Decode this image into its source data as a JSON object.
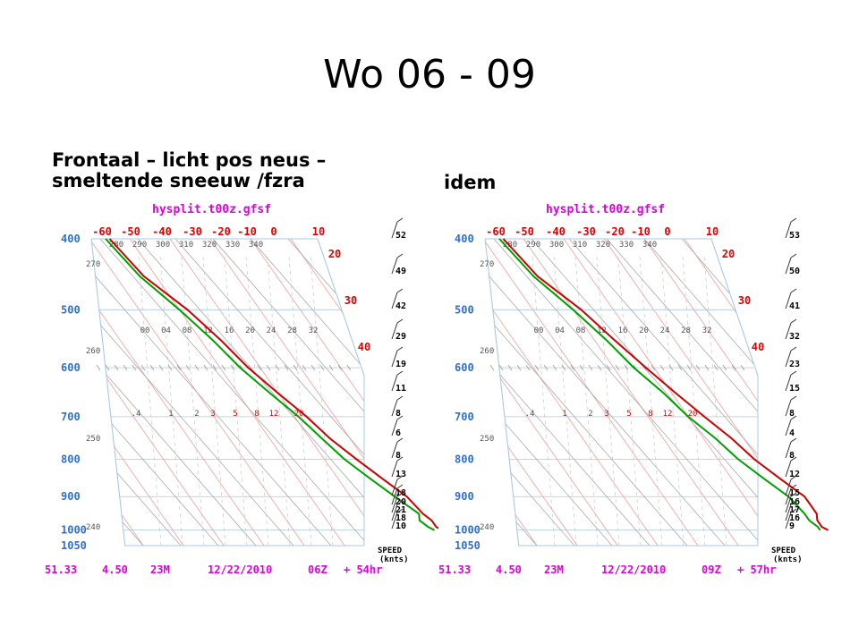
{
  "slide": {
    "title": "Wo 06 - 09",
    "caption_left_line1": "Frontaal – licht pos neus –",
    "caption_left_line2": "smeltende sneeuw /fzra",
    "caption_right": "idem"
  },
  "colors": {
    "temperature_line": "#cc0000",
    "dewpoint_line": "#00a000",
    "isotherm": "#f0a0a0",
    "dry_adiabat": "#a0a0a0",
    "header_text": "#dd00dd",
    "pressure_label": "#3070d0",
    "temp_label": "#e00000"
  },
  "chart_data": [
    {
      "type": "skew-t",
      "title": "hysplit.t00z.gfsf",
      "pressure_levels": [
        "400",
        "500",
        "600",
        "700",
        "800",
        "900",
        "1000",
        "1050"
      ],
      "temperature_ticks": [
        "-60",
        "-50",
        "-40",
        "-30",
        "-20",
        "-10",
        "0",
        "10",
        "20",
        "30",
        "40"
      ],
      "theta_labels": [
        "280",
        "290",
        "300",
        "310",
        "320",
        "330",
        "340"
      ],
      "theta_side_labels": [
        "270",
        "260",
        "250",
        "240"
      ],
      "mixing_ratio_top": [
        "00",
        "04",
        "08",
        "12",
        "16",
        "20",
        "24",
        "28",
        "32"
      ],
      "mixing_ratio_bottom": [
        ".4",
        "1",
        "2",
        "3",
        "5",
        "8",
        "12",
        "20"
      ],
      "wind_speeds": [
        "52",
        "49",
        "42",
        "29",
        "19",
        "11",
        "8",
        "6",
        "8",
        "13",
        "18",
        "20",
        "21",
        "18",
        "10"
      ],
      "speed_label_1": "SPEED",
      "speed_label_2": "(knts)",
      "footer": {
        "lat": "51.33",
        "lon": "4.50",
        "elev": "23M",
        "date": "12/22/2010",
        "time": "06Z",
        "forecast": "+ 54hr"
      },
      "temperature_profile": [
        [
          -35,
          400
        ],
        [
          -33,
          450
        ],
        [
          -28,
          500
        ],
        [
          -25,
          550
        ],
        [
          -23,
          600
        ],
        [
          -20,
          650
        ],
        [
          -17,
          700
        ],
        [
          -15,
          750
        ],
        [
          -12,
          800
        ],
        [
          -9,
          850
        ],
        [
          -6,
          900
        ],
        [
          -5,
          950
        ],
        [
          -4,
          970
        ],
        [
          -4,
          990
        ],
        [
          -3,
          1000
        ]
      ],
      "dewpoint_profile": [
        [
          -36,
          400
        ],
        [
          -34,
          450
        ],
        [
          -30,
          500
        ],
        [
          -27,
          550
        ],
        [
          -25,
          600
        ],
        [
          -22,
          650
        ],
        [
          -19,
          700
        ],
        [
          -17,
          750
        ],
        [
          -15,
          800
        ],
        [
          -12,
          850
        ],
        [
          -9,
          900
        ],
        [
          -6,
          950
        ],
        [
          -7,
          970
        ],
        [
          -6,
          990
        ],
        [
          -5,
          1000
        ]
      ]
    },
    {
      "type": "skew-t",
      "title": "hysplit.t00z.gfsf",
      "pressure_levels": [
        "400",
        "500",
        "600",
        "700",
        "800",
        "900",
        "1000",
        "1050"
      ],
      "temperature_ticks": [
        "-60",
        "-50",
        "-40",
        "-30",
        "-20",
        "-10",
        "0",
        "10",
        "20",
        "30",
        "40"
      ],
      "theta_labels": [
        "280",
        "290",
        "300",
        "310",
        "320",
        "330",
        "340"
      ],
      "theta_side_labels": [
        "270",
        "260",
        "250",
        "240"
      ],
      "mixing_ratio_top": [
        "00",
        "04",
        "08",
        "12",
        "16",
        "20",
        "24",
        "28",
        "32"
      ],
      "mixing_ratio_bottom": [
        ".4",
        "1",
        "2",
        "3",
        "5",
        "8",
        "12",
        "20"
      ],
      "wind_speeds": [
        "53",
        "50",
        "41",
        "32",
        "23",
        "15",
        "8",
        "4",
        "8",
        "12",
        "15",
        "16",
        "17",
        "16",
        "9"
      ],
      "speed_label_1": "SPEED",
      "speed_label_2": "(knts)",
      "footer": {
        "lat": "51.33",
        "lon": "4.50",
        "elev": "23M",
        "date": "12/22/2010",
        "time": "09Z",
        "forecast": "+ 57hr"
      },
      "temperature_profile": [
        [
          -35,
          400
        ],
        [
          -33,
          450
        ],
        [
          -28,
          500
        ],
        [
          -25,
          550
        ],
        [
          -22,
          600
        ],
        [
          -19,
          650
        ],
        [
          -16,
          700
        ],
        [
          -13,
          750
        ],
        [
          -11,
          800
        ],
        [
          -8,
          850
        ],
        [
          -5,
          900
        ],
        [
          -5,
          950
        ],
        [
          -6,
          970
        ],
        [
          -6,
          990
        ],
        [
          -5,
          1000
        ]
      ],
      "dewpoint_profile": [
        [
          -36,
          400
        ],
        [
          -34,
          450
        ],
        [
          -30,
          500
        ],
        [
          -27,
          550
        ],
        [
          -25,
          600
        ],
        [
          -22,
          650
        ],
        [
          -20,
          700
        ],
        [
          -17,
          750
        ],
        [
          -15,
          800
        ],
        [
          -12,
          850
        ],
        [
          -9,
          900
        ],
        [
          -8,
          950
        ],
        [
          -8,
          970
        ],
        [
          -7,
          990
        ],
        [
          -7,
          1000
        ]
      ]
    }
  ]
}
